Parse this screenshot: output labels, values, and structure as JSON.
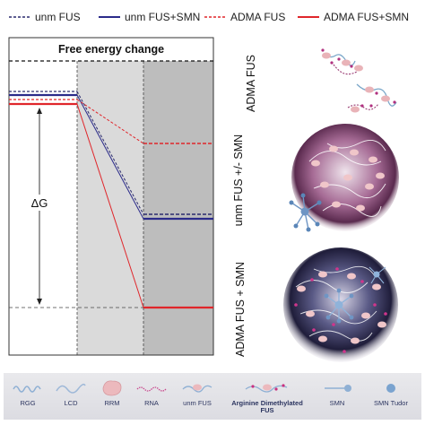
{
  "legend": {
    "items": [
      {
        "label": "unm FUS",
        "color": "#2b2b6e",
        "dashed": true
      },
      {
        "label": "unm FUS+SMN",
        "color": "#2b2b8a",
        "dashed": false
      },
      {
        "label": "ADMA FUS",
        "color": "#e0262b",
        "dashed": true
      },
      {
        "label": "ADMA FUS+SMN",
        "color": "#e0262b",
        "dashed": false
      }
    ]
  },
  "panel": {
    "title": "Free energy change",
    "delta_label": "ΔG"
  },
  "side_labels": {
    "top": "ADMA FUS",
    "middle": "unm FUS +/- SMN",
    "bottom": "ADMA FUS + SMN"
  },
  "bottom_legend": {
    "items": [
      {
        "label": "RGG",
        "icon": "rgg-coil-icon"
      },
      {
        "label": "LCD",
        "icon": "lcd-squiggle-icon"
      },
      {
        "label": "RRM",
        "icon": "rrm-blob-icon"
      },
      {
        "label": "RNA",
        "icon": "rna-strand-icon"
      },
      {
        "label": "unm FUS",
        "icon": "unm-fus-icon"
      },
      {
        "label": "Arginine Dimethylated",
        "label2": "FUS",
        "icon": "adma-fus-icon"
      },
      {
        "label": "SMN",
        "icon": "smn-icon"
      },
      {
        "label": "SMN Tudor",
        "icon": "smn-tudor-icon"
      }
    ]
  },
  "colors": {
    "blue": "#2b2b8a",
    "red": "#e0262b",
    "droplet_purple": "#4a2446",
    "droplet_dark": "#1e1d3c"
  }
}
